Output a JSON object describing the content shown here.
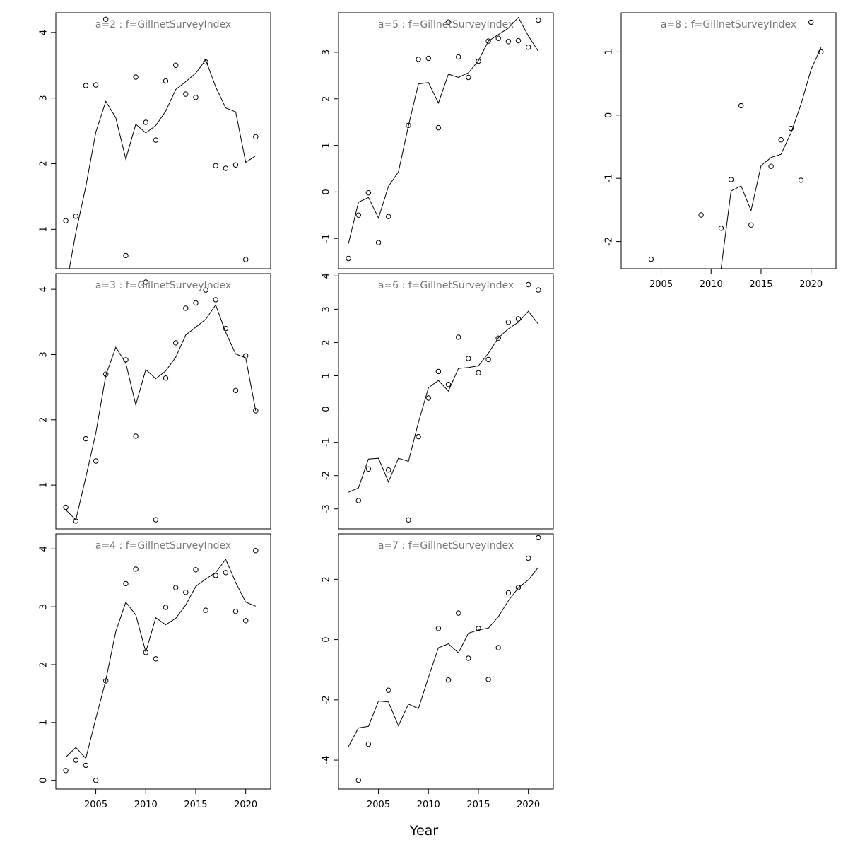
{
  "xlabel": "Year",
  "chart_data": [
    {
      "type": "scatter",
      "title": "a=2  :  f=GillnetSurveyIndex",
      "xlim": [
        2001,
        2022.5
      ],
      "ylim": [
        0.4,
        4.3
      ],
      "xticks": [],
      "yticks": [
        1,
        2,
        3,
        4
      ],
      "ytick_labels": [
        "1",
        "2",
        "3",
        "4"
      ],
      "series": [
        {
          "kind": "points",
          "x": [
            2002,
            2003,
            2004,
            2005,
            2006,
            2008,
            2009,
            2010,
            2011,
            2012,
            2013,
            2014,
            2015,
            2016,
            2017,
            2018,
            2019,
            2020,
            2021
          ],
          "y": [
            1.13,
            1.2,
            3.19,
            3.2,
            4.2,
            0.6,
            3.32,
            2.63,
            2.36,
            3.26,
            3.5,
            3.06,
            3.01,
            3.55,
            1.97,
            1.93,
            1.98,
            0.54,
            2.41
          ]
        },
        {
          "kind": "line",
          "x": [
            2002,
            2003,
            2004,
            2005,
            2006,
            2007,
            2008,
            2009,
            2010,
            2011,
            2012,
            2013,
            2014,
            2015,
            2016,
            2017,
            2018,
            2019,
            2020,
            2021
          ],
          "y": [
            0.1,
            0.95,
            1.65,
            2.48,
            2.95,
            2.7,
            2.07,
            2.6,
            2.47,
            2.58,
            2.8,
            3.13,
            3.25,
            3.38,
            3.58,
            3.17,
            2.85,
            2.79,
            2.02,
            2.12
          ]
        }
      ]
    },
    {
      "type": "scatter",
      "title": "a=5  :  f=GillnetSurveyIndex",
      "xlim": [
        2001,
        2022.5
      ],
      "ylim": [
        -1.65,
        3.85
      ],
      "xticks": [],
      "yticks": [
        -1,
        0,
        1,
        2,
        3
      ],
      "ytick_labels": [
        "-1",
        "0",
        "1",
        "2",
        "3"
      ],
      "series": [
        {
          "kind": "points",
          "x": [
            2002,
            2003,
            2004,
            2005,
            2006,
            2008,
            2009,
            2010,
            2011,
            2012,
            2013,
            2014,
            2015,
            2016,
            2017,
            2018,
            2019,
            2020,
            2021
          ],
          "y": [
            -1.43,
            -0.5,
            -0.02,
            -1.09,
            -0.53,
            1.43,
            2.85,
            2.87,
            1.38,
            3.65,
            2.9,
            2.46,
            2.81,
            3.24,
            3.3,
            3.23,
            3.25,
            3.11,
            3.69
          ]
        },
        {
          "kind": "line",
          "x": [
            2002,
            2003,
            2004,
            2005,
            2006,
            2007,
            2008,
            2009,
            2010,
            2011,
            2012,
            2013,
            2014,
            2015,
            2016,
            2017,
            2018,
            2019,
            2020,
            2021
          ],
          "y": [
            -1.11,
            -0.22,
            -0.12,
            -0.56,
            0.12,
            0.43,
            1.42,
            2.32,
            2.35,
            1.91,
            2.53,
            2.46,
            2.56,
            2.82,
            3.24,
            3.38,
            3.52,
            3.75,
            3.35,
            3.02
          ]
        }
      ]
    },
    {
      "type": "scatter",
      "title": "a=8  :  f=GillnetSurveyIndex",
      "xlim": [
        2001,
        2022.5
      ],
      "ylim": [
        -2.43,
        1.62
      ],
      "xticks": [
        2005,
        2010,
        2015,
        2020
      ],
      "xtick_labels": [
        "2005",
        "2010",
        "2015",
        "2020"
      ],
      "yticks": [
        -2,
        -1,
        0,
        1
      ],
      "ytick_labels": [
        "-2",
        "-1",
        "0",
        "1"
      ],
      "series": [
        {
          "kind": "points",
          "x": [
            2004,
            2009,
            2011,
            2012,
            2013,
            2014,
            2016,
            2017,
            2018,
            2019,
            2020,
            2021
          ],
          "y": [
            -2.28,
            -1.58,
            -1.79,
            -1.02,
            0.15,
            -1.74,
            -0.81,
            -0.39,
            -0.21,
            -1.03,
            1.47,
            1.0
          ]
        },
        {
          "kind": "line",
          "x": [
            2010,
            2011,
            2012,
            2013,
            2014,
            2015,
            2016,
            2017,
            2018,
            2019,
            2020,
            2021
          ],
          "y": [
            -3.1,
            -2.43,
            -1.2,
            -1.12,
            -1.51,
            -0.8,
            -0.67,
            -0.62,
            -0.28,
            0.17,
            0.72,
            1.07
          ]
        }
      ]
    },
    {
      "type": "scatter",
      "title": "a=3  :  f=GillnetSurveyIndex",
      "xlim": [
        2001,
        2022.5
      ],
      "ylim": [
        0.33,
        4.24
      ],
      "xticks": [],
      "yticks": [
        1,
        2,
        3,
        4
      ],
      "ytick_labels": [
        "1",
        "2",
        "3",
        "4"
      ],
      "series": [
        {
          "kind": "points",
          "x": [
            2002,
            2003,
            2004,
            2005,
            2006,
            2008,
            2009,
            2010,
            2011,
            2012,
            2013,
            2014,
            2015,
            2016,
            2017,
            2018,
            2019,
            2020,
            2021
          ],
          "y": [
            0.66,
            0.45,
            1.71,
            1.37,
            2.7,
            2.92,
            1.75,
            4.11,
            0.47,
            2.64,
            3.18,
            3.71,
            3.79,
            3.99,
            3.84,
            3.4,
            2.45,
            2.98,
            2.14
          ]
        },
        {
          "kind": "line",
          "x": [
            2002,
            2003,
            2004,
            2005,
            2006,
            2007,
            2008,
            2009,
            2010,
            2011,
            2012,
            2013,
            2014,
            2015,
            2016,
            2017,
            2018,
            2019,
            2020,
            2021
          ],
          "y": [
            0.62,
            0.47,
            1.12,
            1.8,
            2.68,
            3.11,
            2.87,
            2.23,
            2.77,
            2.63,
            2.75,
            2.96,
            3.3,
            3.42,
            3.54,
            3.76,
            3.34,
            3.01,
            2.95,
            2.14
          ]
        }
      ]
    },
    {
      "type": "scatter",
      "title": "a=6  :  f=GillnetSurveyIndex",
      "xlim": [
        2001,
        2022.5
      ],
      "ylim": [
        -3.6,
        4.07
      ],
      "xticks": [],
      "yticks": [
        -3,
        -2,
        -1,
        0,
        1,
        2,
        3,
        4
      ],
      "ytick_labels": [
        "-3",
        "-2",
        "-1",
        "0",
        "1",
        "2",
        "3",
        "4"
      ],
      "series": [
        {
          "kind": "points",
          "x": [
            2003,
            2004,
            2006,
            2008,
            2009,
            2010,
            2011,
            2012,
            2013,
            2014,
            2015,
            2016,
            2017,
            2018,
            2019,
            2020,
            2021
          ],
          "y": [
            -2.75,
            -1.8,
            -1.83,
            -3.33,
            -0.83,
            0.33,
            1.13,
            0.74,
            2.16,
            1.52,
            1.09,
            1.49,
            2.13,
            2.61,
            2.71,
            3.74,
            3.58
          ]
        },
        {
          "kind": "line",
          "x": [
            2002,
            2003,
            2004,
            2005,
            2006,
            2007,
            2008,
            2009,
            2010,
            2011,
            2012,
            2013,
            2014,
            2015,
            2016,
            2017,
            2018,
            2019,
            2020,
            2021
          ],
          "y": [
            -2.5,
            -2.37,
            -1.5,
            -1.48,
            -2.19,
            -1.48,
            -1.57,
            -0.4,
            0.64,
            0.86,
            0.54,
            1.22,
            1.25,
            1.3,
            1.68,
            2.14,
            2.41,
            2.61,
            2.94,
            2.55
          ]
        }
      ]
    },
    {
      "type": "scatter",
      "title": "a=4  :  f=GillnetSurveyIndex",
      "xlim": [
        2001,
        2022.5
      ],
      "ylim": [
        -0.15,
        4.26
      ],
      "xticks": [
        2005,
        2010,
        2015,
        2020
      ],
      "xtick_labels": [
        "2005",
        "2010",
        "2015",
        "2020"
      ],
      "yticks": [
        0,
        1,
        2,
        3,
        4
      ],
      "ytick_labels": [
        "0",
        "1",
        "2",
        "3",
        "4"
      ],
      "series": [
        {
          "kind": "points",
          "x": [
            2002,
            2003,
            2004,
            2005,
            2006,
            2008,
            2009,
            2010,
            2011,
            2012,
            2013,
            2014,
            2015,
            2016,
            2017,
            2018,
            2019,
            2020,
            2021
          ],
          "y": [
            0.17,
            0.35,
            0.26,
            0.0,
            1.72,
            3.4,
            3.65,
            2.21,
            2.1,
            2.99,
            3.33,
            3.25,
            3.64,
            2.94,
            3.54,
            3.59,
            2.92,
            2.76,
            3.97
          ]
        },
        {
          "kind": "line",
          "x": [
            2002,
            2003,
            2004,
            2005,
            2006,
            2007,
            2008,
            2009,
            2010,
            2011,
            2012,
            2013,
            2014,
            2015,
            2016,
            2017,
            2018,
            2019,
            2020,
            2021
          ],
          "y": [
            0.4,
            0.57,
            0.38,
            1.07,
            1.73,
            2.57,
            3.08,
            2.86,
            2.22,
            2.81,
            2.69,
            2.8,
            3.03,
            3.35,
            3.48,
            3.59,
            3.82,
            3.42,
            3.08,
            3.01
          ]
        }
      ]
    },
    {
      "type": "scatter",
      "title": "a=7  :  f=GillnetSurveyIndex",
      "xlim": [
        2001,
        2022.5
      ],
      "ylim": [
        -4.96,
        3.51
      ],
      "xticks": [
        2005,
        2010,
        2015,
        2020
      ],
      "xtick_labels": [
        "2005",
        "2010",
        "2015",
        "2020"
      ],
      "yticks": [
        -4,
        -2,
        0,
        2
      ],
      "ytick_labels": [
        "-4",
        "-2",
        "0",
        "2"
      ],
      "series": [
        {
          "kind": "points",
          "x": [
            2003,
            2004,
            2006,
            2011,
            2012,
            2013,
            2014,
            2015,
            2016,
            2017,
            2018,
            2019,
            2020,
            2021
          ],
          "y": [
            -4.67,
            -3.47,
            -1.68,
            0.37,
            -1.34,
            0.88,
            -0.62,
            0.37,
            -1.32,
            -0.27,
            1.55,
            1.73,
            2.7,
            3.38
          ]
        },
        {
          "kind": "line",
          "x": [
            2002,
            2003,
            2004,
            2005,
            2006,
            2007,
            2008,
            2009,
            2010,
            2011,
            2012,
            2013,
            2014,
            2015,
            2016,
            2017,
            2018,
            2019,
            2020,
            2021
          ],
          "y": [
            -3.55,
            -2.93,
            -2.88,
            -2.04,
            -2.07,
            -2.86,
            -2.14,
            -2.29,
            -1.25,
            -0.27,
            -0.14,
            -0.44,
            0.21,
            0.32,
            0.38,
            0.76,
            1.29,
            1.72,
            1.98,
            2.4
          ]
        }
      ]
    }
  ]
}
